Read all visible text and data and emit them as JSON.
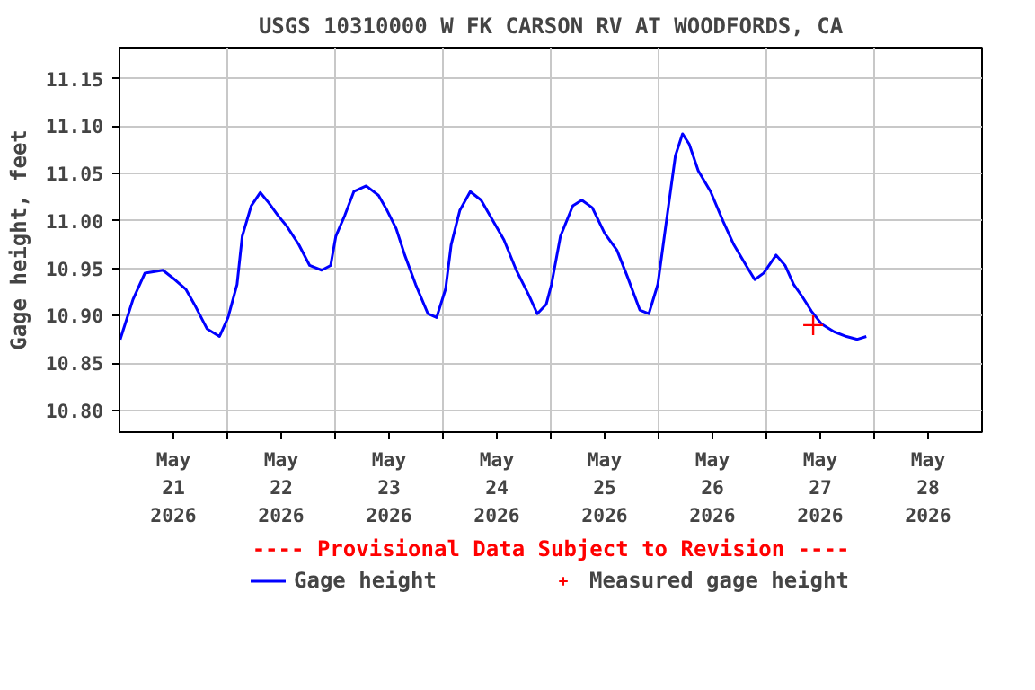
{
  "chart_data": {
    "type": "line",
    "title": "USGS 10310000 W FK CARSON RV AT WOODFORDS, CA",
    "ylabel": "Gage height, feet",
    "annotations": [
      "---- Provisional Data Subject to Revision ----"
    ],
    "xlim": [
      "2026-05-21T00:00",
      "2026-05-29T00:00"
    ],
    "ylim": [
      10.777,
      11.183
    ],
    "xticks": [
      {
        "value": "2026-05-21T12:00",
        "label": "May\n21\n2026"
      },
      {
        "value": "2026-05-22T00:00",
        "label": null
      },
      {
        "value": "2026-05-22T12:00",
        "label": "May\n22\n2026"
      },
      {
        "value": "2026-05-23T00:00",
        "label": null
      },
      {
        "value": "2026-05-23T12:00",
        "label": "May\n23\n2026"
      },
      {
        "value": "2026-05-24T00:00",
        "label": null
      },
      {
        "value": "2026-05-24T12:00",
        "label": "May\n24\n2026"
      },
      {
        "value": "2026-05-25T00:00",
        "label": null
      },
      {
        "value": "2026-05-25T12:00",
        "label": "May\n25\n2026"
      },
      {
        "value": "2026-05-26T00:00",
        "label": null
      },
      {
        "value": "2026-05-26T12:00",
        "label": "May\n26\n2026"
      },
      {
        "value": "2026-05-27T00:00",
        "label": null
      },
      {
        "value": "2026-05-27T12:00",
        "label": "May\n27\n2026"
      },
      {
        "value": "2026-05-28T00:00",
        "label": null
      },
      {
        "value": "2026-05-28T12:00",
        "label": "May\n28\n2026"
      }
    ],
    "yticks": [
      {
        "value": 10.8,
        "label": "10.80"
      },
      10.85,
      {
        "value": 10.9,
        "label": "10.90"
      },
      10.95,
      {
        "value": 11.0,
        "label": "11.00"
      },
      11.05,
      {
        "value": 11.1,
        "label": "11.10"
      },
      11.15
    ],
    "grid": true,
    "legend": "bottom",
    "line_style": "solid",
    "series": [
      {
        "name": "Gage height",
        "color": "#0000ff",
        "marker": "none",
        "x": [
          "2026-05-21T00:10",
          "2026-05-21T03:00",
          "2026-05-21T05:40",
          "2026-05-21T09:40",
          "2026-05-21T12:20",
          "2026-05-21T14:45",
          "2026-05-21T16:40",
          "2026-05-21T19:30",
          "2026-05-21T22:15",
          "2026-05-22T00:10",
          "2026-05-22T02:10",
          "2026-05-22T03:20",
          "2026-05-22T05:20",
          "2026-05-22T07:20",
          "2026-05-22T09:15",
          "2026-05-22T11:15",
          "2026-05-22T13:10",
          "2026-05-22T15:55",
          "2026-05-22T18:20",
          "2026-05-22T21:00",
          "2026-05-22T23:00",
          "2026-05-23T00:10",
          "2026-05-23T02:10",
          "2026-05-23T04:10",
          "2026-05-23T06:55",
          "2026-05-23T09:40",
          "2026-05-23T11:35",
          "2026-05-23T13:35",
          "2026-05-23T15:30",
          "2026-05-23T17:55",
          "2026-05-23T20:40",
          "2026-05-23T22:35",
          "2026-05-24T00:35",
          "2026-05-24T01:50",
          "2026-05-24T03:45",
          "2026-05-24T06:05",
          "2026-05-24T08:30",
          "2026-05-24T11:10",
          "2026-05-24T13:35",
          "2026-05-24T16:20",
          "2026-05-24T19:05",
          "2026-05-24T21:00",
          "2026-05-24T23:00",
          "2026-05-25T00:10",
          "2026-05-25T02:10",
          "2026-05-25T04:55",
          "2026-05-25T06:55",
          "2026-05-25T09:15",
          "2026-05-25T12:00",
          "2026-05-25T14:45",
          "2026-05-25T17:05",
          "2026-05-25T19:50",
          "2026-05-25T21:50",
          "2026-05-25T23:50",
          "2026-05-26T01:45",
          "2026-05-26T03:45",
          "2026-05-26T05:20",
          "2026-05-26T06:50",
          "2026-05-26T08:50",
          "2026-05-26T11:35",
          "2026-05-26T14:20",
          "2026-05-26T16:45",
          "2026-05-26T19:30",
          "2026-05-26T21:25",
          "2026-05-26T23:25",
          "2026-05-27T02:10",
          "2026-05-27T04:10",
          "2026-05-27T06:05",
          "2026-05-27T08:00",
          "2026-05-27T10:00",
          "2026-05-27T12:20",
          "2026-05-27T15:05",
          "2026-05-27T17:50",
          "2026-05-27T20:15",
          "2026-05-27T22:15"
        ],
        "values": [
          10.875,
          10.917,
          10.945,
          10.948,
          10.938,
          10.928,
          10.912,
          10.886,
          10.878,
          10.898,
          10.933,
          10.984,
          11.016,
          11.03,
          11.019,
          11.006,
          10.995,
          10.975,
          10.953,
          10.948,
          10.953,
          10.984,
          11.006,
          11.031,
          11.037,
          11.027,
          11.011,
          10.992,
          10.964,
          10.933,
          10.902,
          10.898,
          10.928,
          10.975,
          11.011,
          11.031,
          11.022,
          11.0,
          10.98,
          10.948,
          10.922,
          10.902,
          10.912,
          10.933,
          10.984,
          11.016,
          11.022,
          11.014,
          10.987,
          10.969,
          10.941,
          10.906,
          10.902,
          10.933,
          11.0,
          11.069,
          11.092,
          11.081,
          11.053,
          11.031,
          11.0,
          10.975,
          10.953,
          10.938,
          10.945,
          10.964,
          10.953,
          10.933,
          10.92,
          10.905,
          10.891,
          10.883,
          10.878,
          10.875,
          10.878
        ]
      },
      {
        "name": "Measured gage height",
        "type": "scatter",
        "color": "#ff0000",
        "marker": "cross",
        "x": [
          "2026-05-27T10:25"
        ],
        "values": [
          10.89
        ]
      }
    ]
  }
}
